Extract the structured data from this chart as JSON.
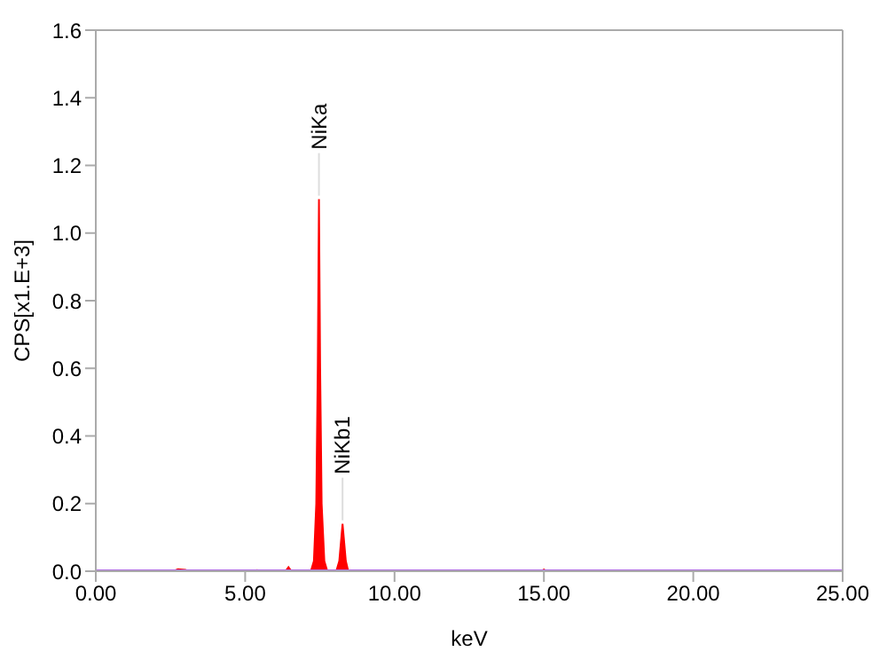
{
  "chart_data": {
    "type": "area",
    "xlabel": "keV",
    "ylabel": "CPS[x1.E+3]",
    "xlim": [
      0,
      25
    ],
    "xticks": [
      {
        "value": 0,
        "label": "0.00"
      },
      {
        "value": 5,
        "label": "5.00"
      },
      {
        "value": 10,
        "label": "10.00"
      },
      {
        "value": 15,
        "label": "15.00"
      },
      {
        "value": 20,
        "label": "20.00"
      },
      {
        "value": 25,
        "label": "25.00"
      }
    ],
    "ylim": [
      0,
      1.6
    ],
    "yticks": [
      {
        "value": 0,
        "label": "0.0"
      },
      {
        "value": 0.2,
        "label": "0.2"
      },
      {
        "value": 0.4,
        "label": "0.4"
      },
      {
        "value": 0.6,
        "label": "0.6"
      },
      {
        "value": 0.8,
        "label": "0.8"
      },
      {
        "value": 1,
        "label": "1.0"
      },
      {
        "value": 1.2,
        "label": "1.2"
      },
      {
        "value": 1.4,
        "label": "1.4"
      },
      {
        "value": 1.6,
        "label": "1.6"
      }
    ],
    "grid": false,
    "legend": false,
    "series": [
      {
        "color": "#ff0000",
        "x": [
          0,
          2.6,
          2.75,
          3.0,
          3.1,
          5.3,
          5.4,
          5.5,
          6.35,
          6.45,
          6.55,
          7.2,
          7.3,
          7.38,
          7.43,
          7.47,
          7.51,
          7.56,
          7.65,
          7.75,
          8.05,
          8.15,
          8.22,
          8.26,
          8.3,
          8.37,
          8.45,
          14.9,
          15.0,
          15.1,
          25
        ],
        "values": [
          0,
          0,
          0.006,
          0.004,
          0,
          0,
          0.003,
          0,
          0,
          0.012,
          0,
          0,
          0.03,
          0.2,
          0.6,
          1.1,
          0.6,
          0.2,
          0.03,
          0,
          0,
          0.03,
          0.1,
          0.14,
          0.1,
          0.03,
          0,
          0,
          0.005,
          0,
          0
        ]
      },
      {
        "type": "line",
        "color": "#b070e0",
        "x": [
          0,
          25
        ],
        "values": [
          0,
          0
        ]
      }
    ],
    "annotations": [
      {
        "text": "NiKa",
        "x": 7.47,
        "y": 1.1
      },
      {
        "text": "NiKb1",
        "x": 8.26,
        "y": 0.14
      }
    ]
  }
}
